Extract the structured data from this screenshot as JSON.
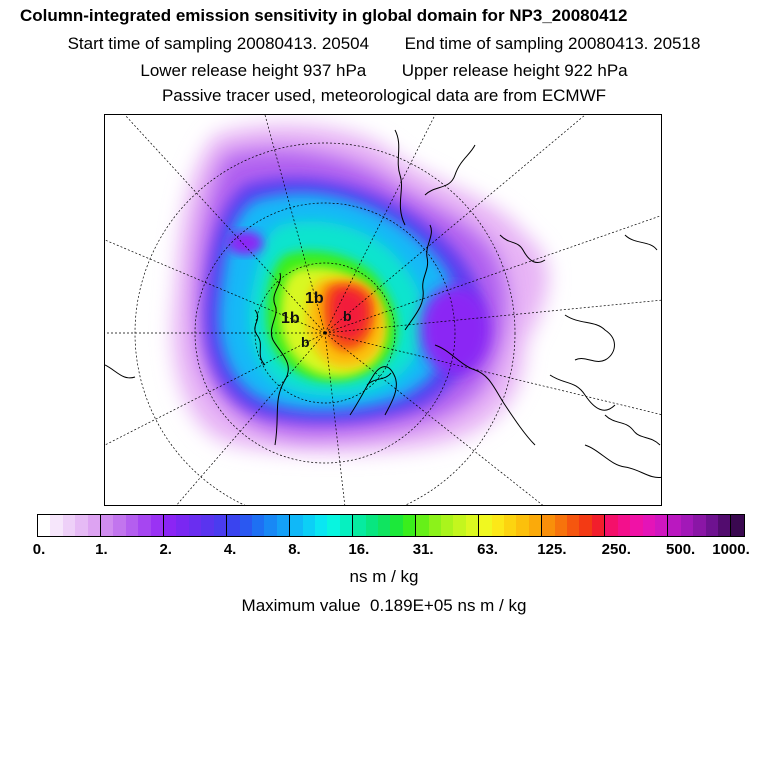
{
  "title": "Column-integrated emission sensitivity in global domain for NP3_20080412",
  "sampling": {
    "start_label": "Start time of sampling",
    "start_value": "20080413. 20504",
    "end_label": "End time of sampling",
    "end_value": "20080413. 20518"
  },
  "release": {
    "lower_label": "Lower release height",
    "lower_value": "937 hPa",
    "upper_label": "Upper release height",
    "upper_value": "922 hPa"
  },
  "note": "Passive tracer used, meteorological data are from ECMWF",
  "colorbar": {
    "tick_labels": [
      "0.",
      "1.",
      "2.",
      "4.",
      "8.",
      "16.",
      "31.",
      "63.",
      "125.",
      "250.",
      "500.",
      "1000."
    ],
    "units": "ns m / kg",
    "colors": [
      "#ffffff",
      "#f6e6fb",
      "#eed0f8",
      "#e6baf5",
      "#dda3f2",
      "#d08cef",
      "#c275ee",
      "#b45eef",
      "#a646f1",
      "#9a32f4",
      "#8b25f4",
      "#7a28f2",
      "#6a2ef0",
      "#5a34ef",
      "#4a3cef",
      "#3a44ef",
      "#2a58f1",
      "#1e70f3",
      "#1888f5",
      "#14a0f7",
      "#10b8f8",
      "#0ccff6",
      "#0ae6f2",
      "#08f5e0",
      "#06f0c0",
      "#06eba0",
      "#08e680",
      "#10e460",
      "#1ce83a",
      "#3aee1c",
      "#66f018",
      "#8cf21a",
      "#aaf41c",
      "#c4f61e",
      "#dcf820",
      "#f0f820",
      "#fce818",
      "#fcd410",
      "#fcc00c",
      "#fbaa0a",
      "#f98f0a",
      "#f7730c",
      "#f5560f",
      "#f33a14",
      "#f21e2c",
      "#f4106a",
      "#f3108c",
      "#f012a6",
      "#e414b8",
      "#d016c0",
      "#ba18c0",
      "#a218b8",
      "#8a16a6",
      "#6e1290",
      "#520c6e",
      "#3a0850"
    ]
  },
  "maximum": {
    "label": "Maximum value",
    "value": "0.189E+05",
    "units": "ns m / kg"
  },
  "map_labels": [
    "1b",
    "1b",
    "b",
    "b"
  ]
}
